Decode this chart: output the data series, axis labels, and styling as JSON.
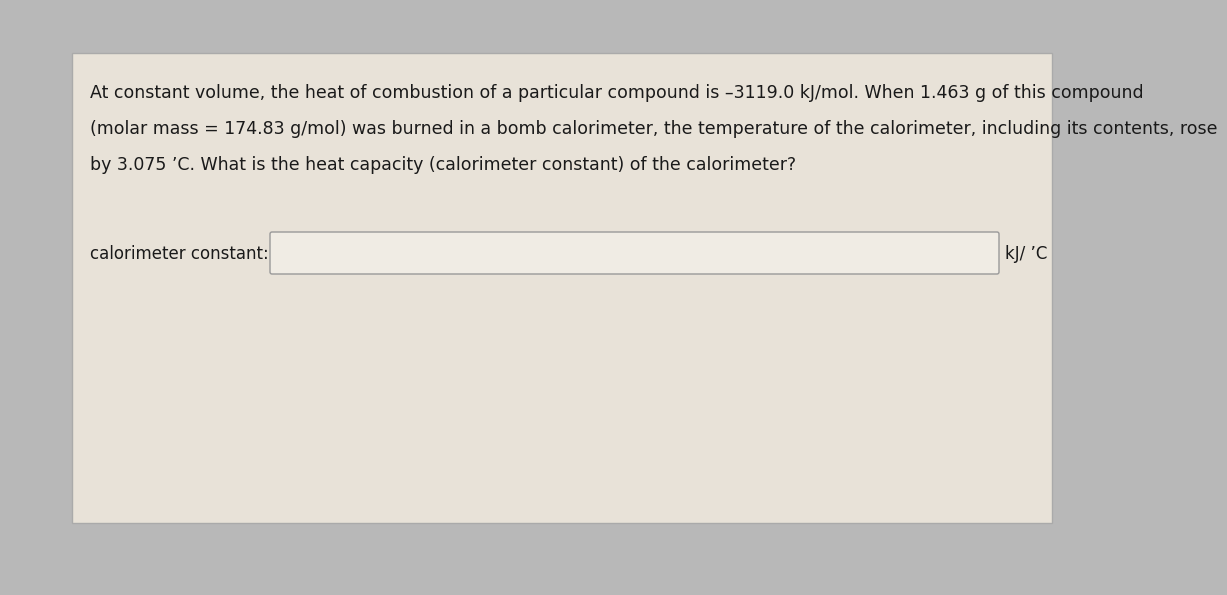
{
  "background_outer": "#b8b8b8",
  "panel_color": "#e8e2d8",
  "input_box_color": "#f0ece4",
  "input_box_border": "#999999",
  "text_color": "#1a1a1a",
  "problem_text_line1": "At constant volume, the heat of combustion of a particular compound is –3119.0 kJ/mol. When 1.463 g of this compound",
  "problem_text_line2": "(molar mass = 174.83 g/mol) was burned in a bomb calorimeter, the temperature of the calorimeter, including its contents, rose",
  "problem_text_line3": "by 3.075 ’C. What is the heat capacity (calorimeter constant) of the calorimeter?",
  "label_text": "calorimeter constant:",
  "unit_text": "kJ/ ’C",
  "font_size_problem": 12.5,
  "font_size_label": 12.0,
  "font_size_unit": 12.0
}
